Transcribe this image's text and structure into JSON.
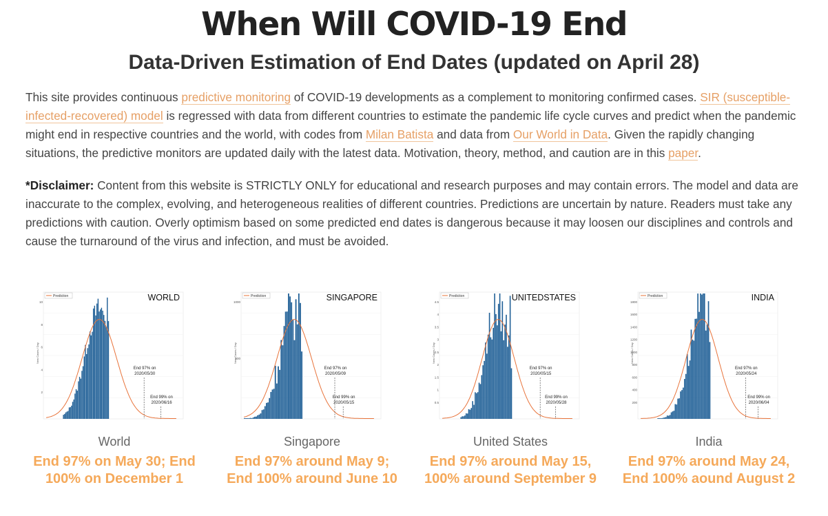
{
  "header": {
    "title": "When Will COVID-19 End",
    "subtitle": "Data-Driven Estimation of End Dates (updated on April 28)"
  },
  "intro": {
    "t1": "This site provides continuous ",
    "link_predictive": "predictive monitoring",
    "t2": " of COVID-19 developments as a complement to monitoring confirmed cases. ",
    "link_sir": "SIR (susceptible-infected-recovered) model",
    "t3": " is regressed with data from different countries to estimate the pandemic life cycle curves and predict when the pandemic might end in respective countries and the world, with codes from ",
    "link_milan": "Milan Batista",
    "t4": " and data from ",
    "link_owid": "Our World in Data",
    "t5": ". Given the rapidly changing situations, the predictive monitors are updated daily with the latest data. Motivation, theory, method, and caution are in this ",
    "link_paper": "paper",
    "t6": "."
  },
  "disclaimer": {
    "label": "*Disclaimer:",
    "text": " Content from this website is STRICTLY ONLY for educational and research purposes and may contain errors. The model and data are inaccurate to the complex, evolving, and heterogeneous realities of different countries. Predictions are uncertain by nature. Readers must take any predictions with caution. Overly optimism based on some predicted end dates is dangerous because it may loosen our disciplines and controls and cause the turnaround of the virus and infection, and must be avoided."
  },
  "colors": {
    "accent": "#f5a95a",
    "link": "#e6a066",
    "bar": "#1f5f96",
    "curve": "#e8733a"
  },
  "cards": [
    {
      "country": "World",
      "status": "End 97% on May 30; End 100% on December 1",
      "chart": {
        "chart_title": "WORLD",
        "legend": "Prediction",
        "ylabel": "New Cases / Day",
        "yticks": [
          "2",
          "4",
          "6",
          "8",
          "10"
        ],
        "end97": "End 97% on",
        "end97_date": "2020/05/30",
        "end99": "End 99% on",
        "end99_date": "2020/06/16"
      }
    },
    {
      "country": "Singapore",
      "status": "End 97% around May 9; End 100% around June 10",
      "chart": {
        "chart_title": "SINGAPORE",
        "legend": "Prediction",
        "ylabel": "New Cases / Day",
        "yticks": [
          "500",
          "1000"
        ],
        "end97": "End 97% on",
        "end97_date": "2020/05/09",
        "end99": "End 99% on",
        "end99_date": "2020/05/15"
      }
    },
    {
      "country": "United States",
      "status": "End 97% around May 15, 100% around September 9",
      "chart": {
        "chart_title": "UNITEDSTATES",
        "legend": "Prediction",
        "ylabel": "New Cases / Day",
        "yticks": [
          "0.5",
          "1",
          "1.5",
          "2",
          "2.5",
          "3",
          "3.5",
          "4",
          "4.5"
        ],
        "end97": "End 97% on",
        "end97_date": "2020/05/15",
        "end99": "End 99% on",
        "end99_date": "2020/05/28"
      }
    },
    {
      "country": "India",
      "status": "End 97% around May 24, End 100% aound August 2",
      "chart": {
        "chart_title": "INDIA",
        "legend": "Prediction",
        "ylabel": "New Cases / Day",
        "yticks": [
          "200",
          "400",
          "600",
          "800",
          "1000",
          "1200",
          "1400",
          "1600",
          "1800"
        ],
        "end97": "End 97% on",
        "end97_date": "2020/05/24",
        "end99": "End 99% on",
        "end99_date": "2020/06/04"
      }
    }
  ]
}
